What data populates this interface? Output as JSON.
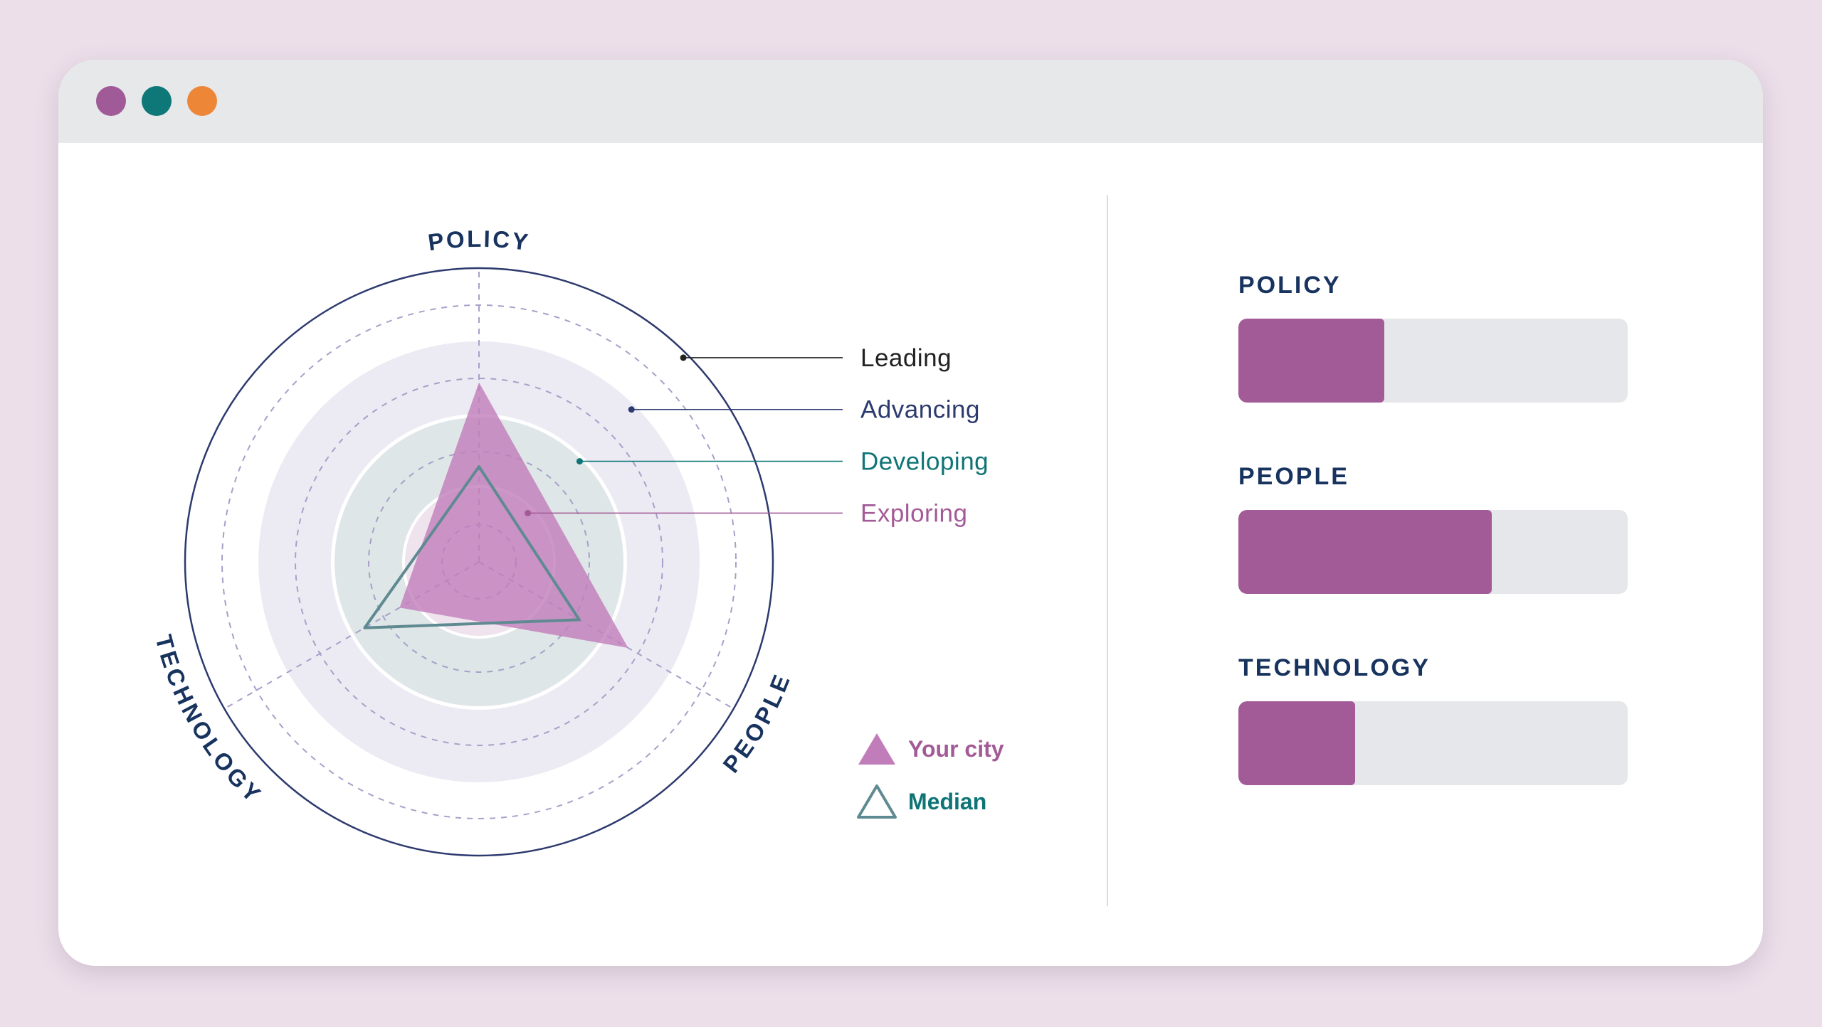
{
  "window": {
    "controls": [
      {
        "name": "purple-dot",
        "color": "#a05a98"
      },
      {
        "name": "teal-dot",
        "color": "#0e7878"
      },
      {
        "name": "orange-dot",
        "color": "#ed8636"
      }
    ]
  },
  "colors": {
    "navy": "#17335e",
    "purple": "#a35b97",
    "your_city_fill": "#c07dba",
    "median_stroke": "#5f8a92",
    "leading": "#222222",
    "advancing": "#2d3a6e",
    "developing": "#0e7475",
    "exploring": "#a35b97",
    "bar_track": "#e6e7ea"
  },
  "chart_data": [
    {
      "type": "radar",
      "axes": [
        "POLICY",
        "PEOPLE",
        "TECHNOLOGY"
      ],
      "range": [
        0,
        4
      ],
      "levels": [
        {
          "name": "Exploring",
          "value": 1
        },
        {
          "name": "Developing",
          "value": 2
        },
        {
          "name": "Advancing",
          "value": 3
        },
        {
          "name": "Leading",
          "value": 4
        }
      ],
      "series": [
        {
          "name": "Your city",
          "values": [
            2.45,
            2.35,
            1.25
          ]
        },
        {
          "name": "Median",
          "values": [
            1.3,
            1.58,
            1.8
          ]
        }
      ],
      "legend": [
        "Your city",
        "Median"
      ],
      "grid": true
    },
    {
      "type": "bar",
      "orientation": "horizontal",
      "categories": [
        "POLICY",
        "PEOPLE",
        "TECHNOLOGY"
      ],
      "values": [
        0.375,
        0.65,
        0.3
      ],
      "range": [
        0,
        1
      ]
    }
  ]
}
